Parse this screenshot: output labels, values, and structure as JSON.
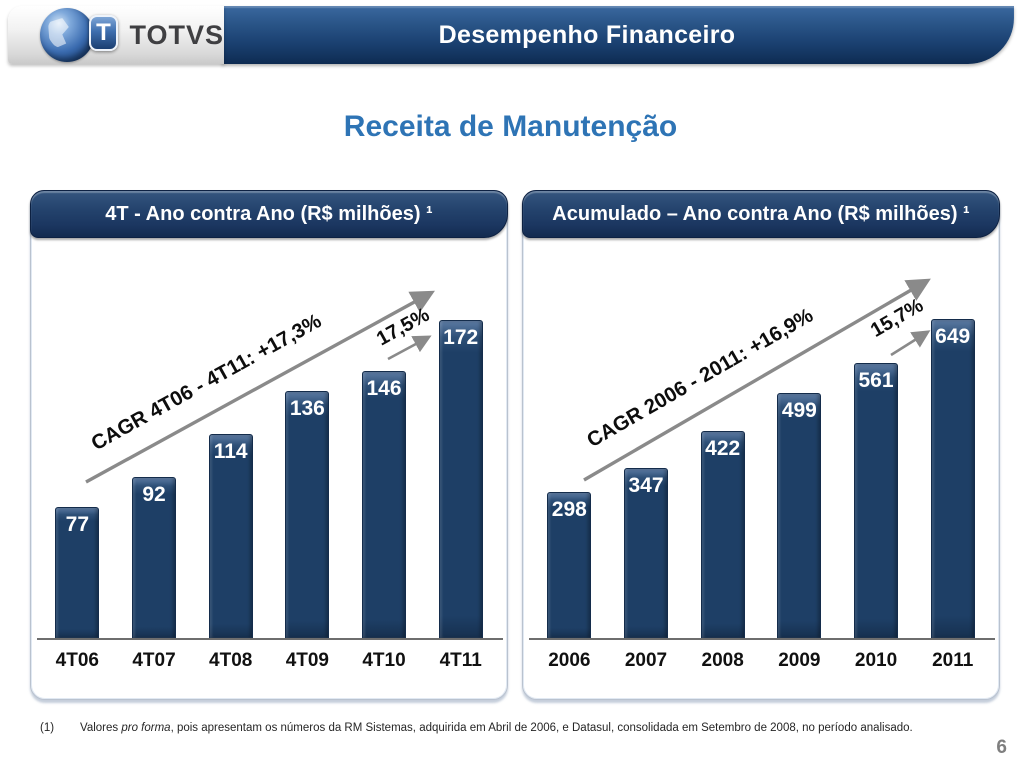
{
  "header": {
    "logo_text": "TOTVS",
    "logo_monogram": "T",
    "title": "Desempenho Financeiro"
  },
  "main_title": "Receita de Manutenção",
  "chart_data": [
    {
      "type": "bar",
      "title": "4T - Ano contra Ano (R$ milhões) ¹",
      "categories": [
        "4T06",
        "4T07",
        "4T08",
        "4T09",
        "4T10",
        "4T11"
      ],
      "values": [
        77,
        92,
        114,
        136,
        146,
        172
      ],
      "cagr_annotation": "CAGR 4T06 - 4T11: +17,3%",
      "growth_annotation": "17,5%",
      "xlabel": "",
      "ylabel": "",
      "ylim": [
        10,
        185
      ],
      "grid": false,
      "legend": false,
      "data_labels": "inside-end"
    },
    {
      "type": "bar",
      "title": "Acumulado – Ano contra Ano (R$ milhões) ¹",
      "categories": [
        "2006",
        "2007",
        "2008",
        "2009",
        "2010",
        "2011"
      ],
      "values": [
        298,
        347,
        422,
        499,
        561,
        649
      ],
      "cagr_annotation": "CAGR 2006 - 2011: +16,9%",
      "growth_annotation": "15,7%",
      "xlabel": "",
      "ylabel": "",
      "ylim": [
        0,
        700
      ],
      "grid": false,
      "legend": false,
      "data_labels": "inside-end"
    }
  ],
  "footnote": {
    "marker": "(1)",
    "prefix": "Valores ",
    "italic": "pro forma",
    "suffix": ", pois apresentam os números da RM Sistemas, adquirida em Abril de 2006, e Datasul, consolidada em Setembro de 2008, no período analisado."
  },
  "page_number": "6",
  "colors": {
    "accent_blue": "#2E74B5",
    "bar_fill": "#1E3F66",
    "banner_navy": "#1B3660",
    "header_blue_top": "#3A689F",
    "header_blue_bottom": "#0E2B52",
    "arrow_gray": "#8A8A8A",
    "value_label": "#FFFFFF",
    "page_number_gray": "#7F7F7F"
  }
}
